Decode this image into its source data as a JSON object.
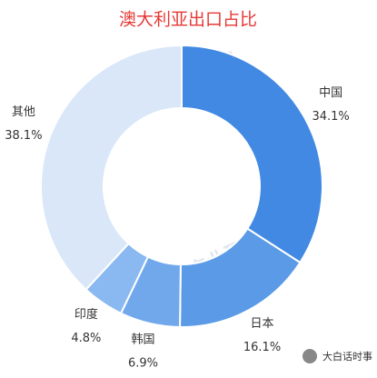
{
  "chart_data": {
    "type": "donut",
    "title": "澳大利亚出口占比",
    "categories": [
      "中国",
      "日本",
      "韩国",
      "印度",
      "其他"
    ],
    "values": [
      34.1,
      16.1,
      6.9,
      4.8,
      38.1
    ],
    "value_labels": [
      "34.1%",
      "16.1%",
      "6.9%",
      "4.8%",
      "38.1%"
    ],
    "colors": [
      "#4189e2",
      "#5a9ae6",
      "#70a8eb",
      "#8ab8f0",
      "#d9e7f9"
    ],
    "watermark": "前瞻产业研究院",
    "source": "大白话时事"
  }
}
